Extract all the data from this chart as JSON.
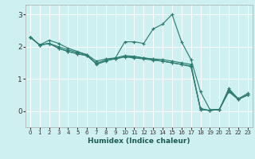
{
  "xlabel": "Humidex (Indice chaleur)",
  "bg_color": "#cff0f0",
  "grid_color": "#ffffff",
  "line_color": "#2e7d72",
  "xlim": [
    -0.5,
    23.5
  ],
  "ylim": [
    -0.5,
    3.3
  ],
  "xticks": [
    0,
    1,
    2,
    3,
    4,
    5,
    6,
    7,
    8,
    9,
    10,
    11,
    12,
    13,
    14,
    15,
    16,
    17,
    18,
    19,
    20,
    21,
    22,
    23
  ],
  "yticks": [
    0,
    1,
    2,
    3
  ],
  "lines": [
    {
      "x": [
        0,
        1,
        2,
        3,
        4,
        5,
        6,
        7,
        8,
        9,
        10,
        11,
        12,
        13,
        14,
        15,
        16,
        17,
        18,
        19,
        20,
        21,
        22,
        23
      ],
      "y": [
        2.3,
        2.05,
        2.2,
        2.1,
        1.95,
        1.85,
        1.75,
        1.45,
        1.55,
        1.65,
        2.15,
        2.15,
        2.1,
        2.55,
        2.7,
        3.0,
        2.15,
        1.6,
        0.6,
        0.05,
        0.05,
        0.7,
        0.38,
        0.55
      ]
    },
    {
      "x": [
        0,
        1,
        2,
        3,
        4,
        5,
        6,
        7,
        8,
        9,
        10,
        11,
        12,
        13,
        14,
        15,
        16,
        17,
        18,
        19,
        20,
        21,
        22,
        23
      ],
      "y": [
        2.3,
        2.05,
        2.1,
        1.95,
        1.85,
        1.78,
        1.72,
        1.48,
        1.58,
        1.62,
        1.7,
        1.68,
        1.65,
        1.62,
        1.6,
        1.55,
        1.5,
        1.45,
        0.05,
        0.02,
        0.05,
        0.65,
        0.38,
        0.5
      ]
    },
    {
      "x": [
        0,
        1,
        2,
        3,
        4,
        5,
        6,
        7,
        8,
        9,
        10,
        11,
        12,
        13,
        14,
        15,
        16,
        17,
        18,
        19,
        20,
        21,
        22,
        23
      ],
      "y": [
        2.3,
        2.05,
        2.1,
        1.95,
        1.85,
        1.78,
        1.72,
        1.48,
        1.58,
        1.62,
        1.68,
        1.65,
        1.62,
        1.58,
        1.55,
        1.5,
        1.45,
        1.4,
        0.05,
        0.02,
        0.05,
        0.6,
        0.36,
        0.5
      ]
    },
    {
      "x": [
        0,
        1,
        2,
        3,
        4,
        5,
        6,
        7,
        8,
        9,
        10,
        11,
        12,
        13,
        14,
        15,
        16,
        17,
        18,
        19,
        20,
        21,
        22,
        23
      ],
      "y": [
        2.3,
        2.05,
        2.1,
        2.0,
        1.9,
        1.82,
        1.75,
        1.55,
        1.62,
        1.65,
        1.72,
        1.7,
        1.65,
        1.6,
        1.55,
        1.5,
        1.45,
        1.38,
        0.08,
        0.02,
        0.05,
        0.62,
        0.37,
        0.5
      ]
    }
  ]
}
